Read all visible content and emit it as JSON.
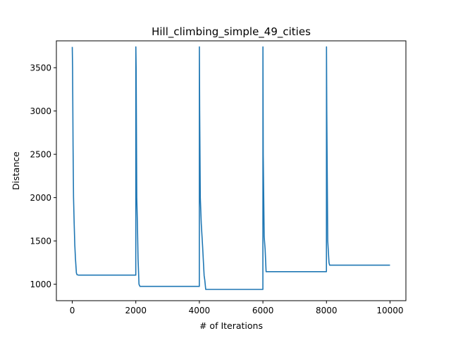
{
  "chart_data": {
    "type": "line",
    "title": "Hill_climbing_simple_49_cities",
    "xlabel": "# of Iterations",
    "ylabel": "Distance",
    "xlim": [
      -500,
      10500
    ],
    "ylim": [
      810,
      3810
    ],
    "xticks": [
      0,
      2000,
      4000,
      6000,
      8000,
      10000
    ],
    "xtick_labels": [
      "0",
      "2000",
      "4000",
      "6000",
      "8000",
      "10000"
    ],
    "yticks": [
      1000,
      1500,
      2000,
      2500,
      3000,
      3500
    ],
    "ytick_labels": [
      "1000",
      "1500",
      "2000",
      "2500",
      "3000",
      "3500"
    ],
    "grid": false,
    "colors": {
      "line": "#1f77b4",
      "axes": "#000000",
      "background": "#ffffff"
    },
    "series": [
      {
        "x": [
          0,
          10,
          25,
          40,
          60,
          80,
          100,
          130,
          150,
          200,
          500,
          1000,
          1500,
          1999,
          2001,
          2010,
          2030,
          2050,
          2070,
          2100,
          2130,
          2200,
          3000,
          3999,
          4001,
          4010,
          4030,
          4060,
          4100,
          4150,
          4170,
          4200,
          5000,
          5999,
          6001,
          6010,
          6040,
          6070,
          6100,
          6150,
          7000,
          7999,
          8001,
          8010,
          8040,
          8080,
          8100,
          8150,
          9000,
          10000
        ],
        "y": [
          3740,
          3500,
          2600,
          2000,
          1700,
          1450,
          1300,
          1130,
          1110,
          1105,
          1105,
          1105,
          1105,
          1105,
          3740,
          3500,
          2000,
          1700,
          1300,
          1000,
          975,
          975,
          975,
          975,
          3740,
          3000,
          2000,
          1700,
          1450,
          1100,
          1050,
          940,
          940,
          940,
          3740,
          2500,
          1550,
          1400,
          1145,
          1145,
          1145,
          1145,
          3740,
          3000,
          1500,
          1250,
          1220,
          1220,
          1220,
          1220
        ]
      }
    ]
  }
}
